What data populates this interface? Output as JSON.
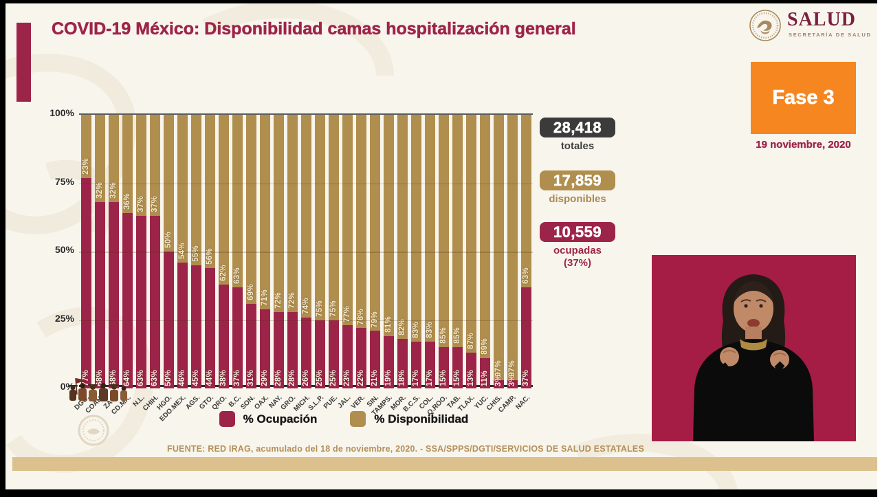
{
  "header": {
    "title": "COVID-19 México: Disponibilidad camas hospitalización general",
    "logo": {
      "name": "SALUD",
      "subtitle": "SECRETARÍA DE SALUD",
      "emblem": "eagle-seal-icon"
    },
    "phase_badge": {
      "label": "Fase 3",
      "color": "#f6861f"
    },
    "date": "19 noviembre, 2020"
  },
  "chart_data": {
    "type": "bar",
    "stacked": true,
    "orientation": "vertical",
    "categories": [
      "DGO.",
      "COAH.",
      "ZAC.",
      "CD.MX.",
      "N.L.",
      "CHIH.",
      "HGO.",
      "EDO.MEX.",
      "AGS.",
      "GTO.",
      "QRO.",
      "B.C.",
      "SON.",
      "OAX.",
      "NAY.",
      "GRO.",
      "MICH.",
      "S.L.P.",
      "PUE.",
      "JAL.",
      "VER.",
      "SIN.",
      "TAMPS.",
      "MOR.",
      "B.C.S.",
      "COL.",
      "Q.ROO.",
      "TAB.",
      "TLAX.",
      "YUC.",
      "CHIS.",
      "CAMP.",
      "NAC."
    ],
    "series": [
      {
        "name": "% Ocupación",
        "color": "#9d2449",
        "values": [
          77,
          68,
          68,
          64,
          63,
          63,
          50,
          46,
          45,
          44,
          38,
          37,
          31,
          29,
          28,
          28,
          26,
          25,
          25,
          23,
          22,
          21,
          19,
          18,
          17,
          17,
          15,
          15,
          13,
          11,
          3,
          3,
          37
        ]
      },
      {
        "name": "% Disponibilidad",
        "color": "#b08e4e",
        "values": [
          23,
          32,
          32,
          36,
          37,
          37,
          50,
          54,
          55,
          56,
          62,
          63,
          69,
          71,
          72,
          72,
          74,
          75,
          75,
          77,
          78,
          79,
          81,
          82,
          83,
          83,
          85,
          85,
          87,
          89,
          97,
          97,
          63
        ]
      }
    ],
    "yticks": [
      "100%",
      "75%",
      "50%",
      "25%",
      "0%"
    ],
    "ylim": [
      0,
      100
    ],
    "grid": true,
    "legend_position": "bottom",
    "bar_labels": "both segments, rotated 90°, percent"
  },
  "stats": [
    {
      "value": "28,418",
      "label": "totales",
      "box_color": "#3b3b3b",
      "label_color": "#3f3f3f"
    },
    {
      "value": "17,859",
      "label": "disponibles",
      "box_color": "#b08e4e",
      "label_color": "#ab8950"
    },
    {
      "value": "10,559",
      "label": "ocupadas",
      "sublabel": "(37%)",
      "box_color": "#9d2449",
      "label_color": "#9d2449"
    }
  ],
  "footer": {
    "source": "FUENTE: RED IRAG, acumulado del 18 de noviembre, 2020. -  SSA/SPPS/DGTI/SERVICIOS DE SALUD ESTATALES"
  },
  "interpreter": {
    "content": "sign-language-interpreter",
    "bg_color": "#a51c45"
  }
}
